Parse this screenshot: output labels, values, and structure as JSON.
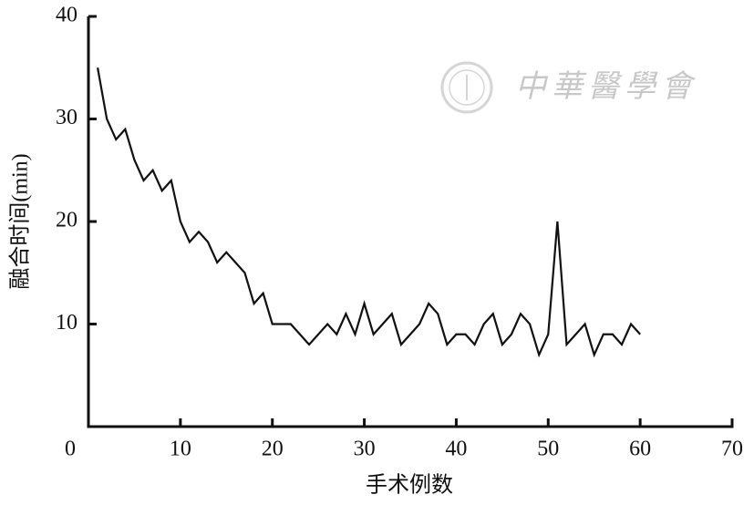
{
  "chart_data": {
    "type": "line",
    "xlabel": "手术例数",
    "ylabel": "融合时间(min)",
    "watermark": "中華醫學會",
    "x": [
      1,
      2,
      3,
      4,
      5,
      6,
      7,
      8,
      9,
      10,
      11,
      12,
      13,
      14,
      15,
      16,
      17,
      18,
      19,
      20,
      21,
      22,
      23,
      24,
      25,
      26,
      27,
      28,
      29,
      30,
      31,
      32,
      33,
      34,
      35,
      36,
      37,
      38,
      39,
      40,
      41,
      42,
      43,
      44,
      45,
      46,
      47,
      48,
      49,
      50,
      51,
      52,
      53,
      54,
      55,
      56,
      57,
      58,
      59,
      60
    ],
    "series": [
      {
        "color": "#111111",
        "values": [
          35,
          30,
          28,
          29,
          26,
          24,
          25,
          23,
          24,
          20,
          18,
          19,
          18,
          16,
          17,
          16,
          15,
          12,
          13,
          10,
          10,
          10,
          9,
          8,
          9,
          10,
          9,
          11,
          9,
          12,
          9,
          10,
          11,
          8,
          9,
          10,
          12,
          11,
          8,
          9,
          9,
          8,
          10,
          11,
          8,
          9,
          11,
          10,
          7,
          9,
          20,
          8,
          9,
          10,
          7,
          9,
          9,
          8,
          10,
          9
        ]
      }
    ],
    "xlim": [
      0,
      70
    ],
    "xticks": [
      0,
      10,
      20,
      30,
      40,
      50,
      60,
      70
    ],
    "ylim": [
      0,
      40
    ],
    "yticks": [
      10,
      20,
      30,
      40
    ]
  }
}
